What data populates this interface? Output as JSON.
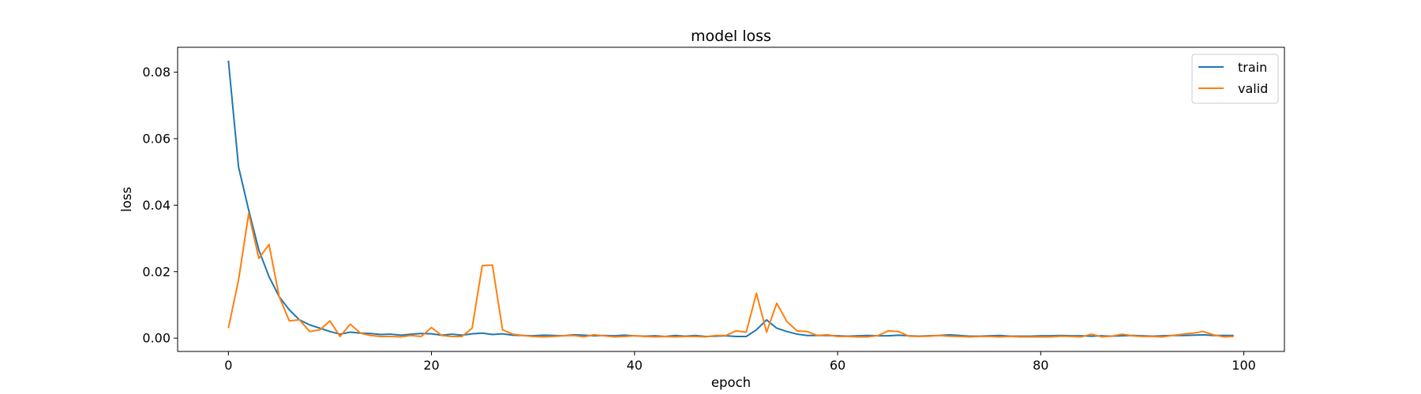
{
  "chart_data": {
    "type": "line",
    "title": "model loss",
    "xlabel": "epoch",
    "ylabel": "loss",
    "xlim": [
      -5,
      104
    ],
    "ylim": [
      -0.004,
      0.0875
    ],
    "xticks": [
      0,
      20,
      40,
      60,
      80,
      100
    ],
    "xtick_labels": [
      "0",
      "20",
      "40",
      "60",
      "80",
      "100"
    ],
    "yticks": [
      0.0,
      0.02,
      0.04,
      0.06,
      0.08
    ],
    "ytick_labels": [
      "0.00",
      "0.02",
      "0.04",
      "0.06",
      "0.08"
    ],
    "grid": false,
    "legend_position": "top-right",
    "series": [
      {
        "name": "train",
        "color": "#1f77b4",
        "values": [
          0.0835,
          0.0515,
          0.0385,
          0.0265,
          0.0185,
          0.0125,
          0.0085,
          0.0055,
          0.004,
          0.003,
          0.002,
          0.0012,
          0.0018,
          0.0015,
          0.0014,
          0.0011,
          0.0012,
          0.0009,
          0.0012,
          0.0014,
          0.0013,
          0.0009,
          0.0012,
          0.0009,
          0.0013,
          0.0015,
          0.0011,
          0.0013,
          0.0009,
          0.0008,
          0.0007,
          0.0009,
          0.0008,
          0.0007,
          0.001,
          0.0009,
          0.0007,
          0.0008,
          0.0007,
          0.0009,
          0.0007,
          0.0006,
          0.0007,
          0.0005,
          0.0008,
          0.0006,
          0.0008,
          0.0005,
          0.0006,
          0.0007,
          0.0005,
          0.0005,
          0.0025,
          0.0055,
          0.003,
          0.002,
          0.0012,
          0.0008,
          0.0008,
          0.0008,
          0.0007,
          0.0006,
          0.0007,
          0.0008,
          0.0007,
          0.0007,
          0.0009,
          0.0007,
          0.0006,
          0.0007,
          0.0008,
          0.001,
          0.0008,
          0.0006,
          0.0006,
          0.0007,
          0.0008,
          0.0006,
          0.0006,
          0.0006,
          0.0007,
          0.0007,
          0.0008,
          0.0007,
          0.0007,
          0.0006,
          0.0007,
          0.0006,
          0.0007,
          0.0008,
          0.0007,
          0.0006,
          0.0007,
          0.0008,
          0.0008,
          0.0009,
          0.001,
          0.0008,
          0.0008,
          0.0008
        ]
      },
      {
        "name": "valid",
        "color": "#ff7f0e",
        "values": [
          0.003,
          0.0175,
          0.0375,
          0.024,
          0.0282,
          0.0125,
          0.0052,
          0.0055,
          0.002,
          0.0025,
          0.0052,
          0.0005,
          0.0042,
          0.0015,
          0.0008,
          0.0005,
          0.0005,
          0.0004,
          0.0008,
          0.0005,
          0.0032,
          0.0008,
          0.0005,
          0.0005,
          0.003,
          0.0218,
          0.022,
          0.0025,
          0.0012,
          0.0008,
          0.0005,
          0.0004,
          0.0005,
          0.0007,
          0.0008,
          0.0004,
          0.001,
          0.0007,
          0.0004,
          0.0005,
          0.0007,
          0.0005,
          0.0004,
          0.0005,
          0.0004,
          0.0005,
          0.0005,
          0.0004,
          0.0008,
          0.0008,
          0.0022,
          0.0018,
          0.0135,
          0.0018,
          0.0105,
          0.005,
          0.0022,
          0.002,
          0.0008,
          0.001,
          0.0005,
          0.0005,
          0.0004,
          0.0004,
          0.0008,
          0.0022,
          0.002,
          0.0006,
          0.0005,
          0.0006,
          0.0008,
          0.0006,
          0.0005,
          0.0004,
          0.0005,
          0.0005,
          0.0004,
          0.0005,
          0.0004,
          0.0004,
          0.0004,
          0.0004,
          0.0006,
          0.0005,
          0.0004,
          0.0012,
          0.0004,
          0.0006,
          0.0012,
          0.0007,
          0.0005,
          0.0005,
          0.0004,
          0.0008,
          0.0012,
          0.0015,
          0.002,
          0.001,
          0.0004,
          0.0005
        ]
      }
    ]
  }
}
